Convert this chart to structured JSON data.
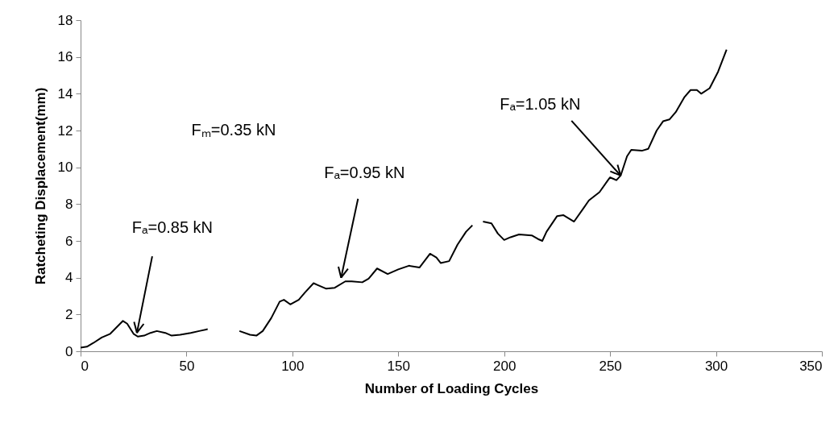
{
  "chart_data": {
    "type": "line",
    "xlabel": "Number of Loading Cycles",
    "ylabel": "Ratcheting Displacement(mm)",
    "x": [
      0,
      3,
      6,
      10,
      14,
      17,
      20,
      22,
      25,
      27,
      30,
      33,
      36,
      40,
      43,
      47,
      52,
      56,
      60,
      67.5,
      75,
      80,
      83,
      86,
      90,
      94,
      96,
      99,
      103,
      106,
      110,
      112,
      116,
      120,
      125,
      128,
      133,
      136,
      140,
      145,
      150,
      155,
      160,
      165,
      168,
      170,
      174,
      178,
      182,
      185,
      187.5,
      190,
      194,
      197,
      200,
      203,
      207,
      213,
      216,
      218,
      220,
      225,
      228,
      233,
      237,
      240,
      245,
      249,
      250,
      253,
      255,
      258,
      260,
      265,
      268,
      272,
      275,
      278,
      281,
      285,
      288,
      291,
      293,
      297,
      301,
      305
    ],
    "series": [
      {
        "color": "#000000",
        "values": [
          0.2,
          0.25,
          0.45,
          0.75,
          0.95,
          1.3,
          1.65,
          1.5,
          0.95,
          0.8,
          0.85,
          1.0,
          1.1,
          1.0,
          0.85,
          0.9,
          1.0,
          1.1,
          1.2,
          null,
          1.1,
          0.9,
          0.85,
          1.1,
          1.8,
          2.7,
          2.8,
          2.55,
          2.8,
          3.2,
          3.7,
          3.6,
          3.4,
          3.45,
          3.8,
          3.8,
          3.75,
          3.95,
          4.5,
          4.2,
          4.45,
          4.65,
          4.55,
          5.3,
          5.1,
          4.8,
          4.9,
          5.8,
          6.5,
          6.85,
          null,
          7.05,
          6.95,
          6.4,
          6.05,
          6.2,
          6.35,
          6.3,
          6.1,
          6.0,
          6.5,
          7.35,
          7.4,
          7.05,
          7.7,
          8.2,
          8.65,
          9.3,
          9.45,
          9.3,
          9.55,
          10.6,
          10.95,
          10.9,
          11.0,
          12.0,
          12.5,
          12.6,
          13.0,
          13.8,
          14.2,
          14.2,
          14.0,
          14.3,
          15.2,
          16.4
        ]
      }
    ],
    "xlim": [
      0,
      350
    ],
    "xticks": [
      0,
      50,
      100,
      150,
      200,
      250,
      300,
      350
    ],
    "ylim": [
      0,
      18
    ],
    "yticks": [
      0,
      2,
      4,
      6,
      8,
      10,
      12,
      14,
      16,
      18
    ],
    "grid": false,
    "marker": "none",
    "line_style": "solid",
    "annotations": [
      "Fₘ=0.35 kN",
      {
        "text": "Fₐ=0.85 kN",
        "x": 26.6,
        "y": 1.0
      },
      {
        "text": "Fₐ=0.95 kN",
        "x": 123,
        "y": 4.0
      },
      {
        "text": "Fₐ=1.05 kN",
        "x": 255,
        "y": 9.55
      }
    ]
  }
}
